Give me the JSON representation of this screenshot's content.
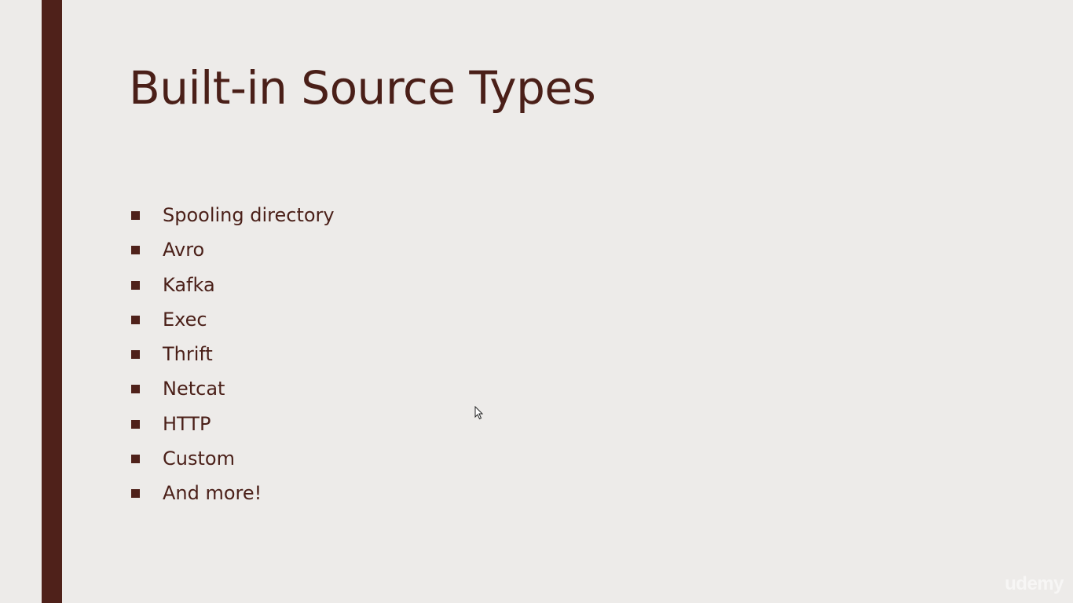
{
  "slide": {
    "title": "Built-in Source Types",
    "bullets": [
      {
        "label": "Spooling directory"
      },
      {
        "label": "Avro"
      },
      {
        "label": "Kafka"
      },
      {
        "label": "Exec"
      },
      {
        "label": "Thrift"
      },
      {
        "label": "Netcat"
      },
      {
        "label": "HTTP"
      },
      {
        "label": "Custom"
      },
      {
        "label": "And more!"
      }
    ],
    "watermark": "udemy"
  },
  "colors": {
    "background": "#edebe9",
    "accent_bar": "#4f211a",
    "text": "#4a1f18"
  },
  "icons": {
    "bullet": "square-bullet-icon",
    "cursor": "mouse-pointer-icon"
  }
}
